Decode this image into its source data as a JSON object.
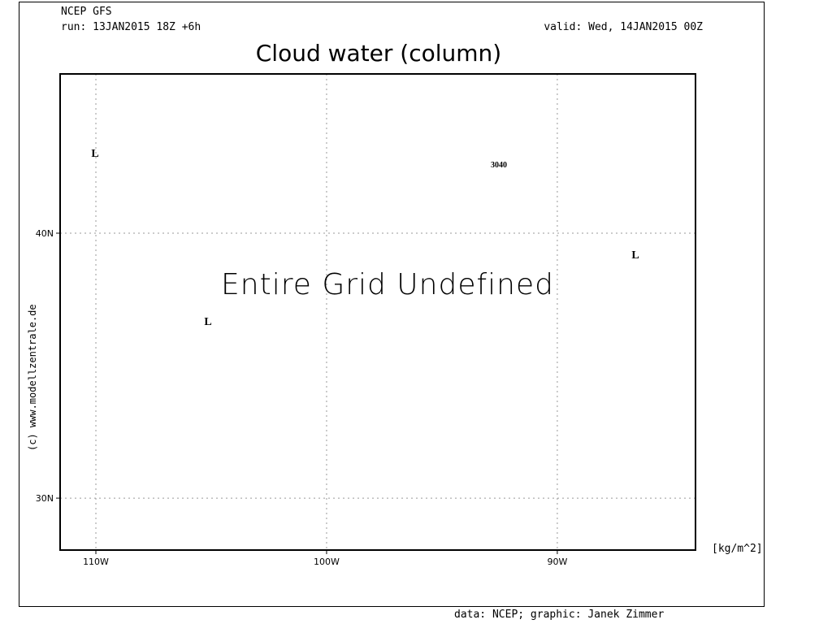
{
  "header": {
    "model": "NCEP GFS",
    "run": "run: 13JAN2015 18Z +6h",
    "valid": "valid: Wed, 14JAN2015 00Z"
  },
  "title": "Cloud water (column)",
  "map": {
    "message": "Entire Grid Undefined",
    "xlim": [
      -111.55,
      -84.01
    ],
    "ylim": [
      28.04,
      46.01
    ],
    "xticks": [
      {
        "value": -110,
        "label": "110W"
      },
      {
        "value": -100,
        "label": "100W"
      },
      {
        "value": -90,
        "label": "90W"
      }
    ],
    "yticks": [
      {
        "value": 30,
        "label": "30N"
      },
      {
        "value": 40,
        "label": "40N"
      }
    ],
    "pressure_labels": [
      "L",
      "L",
      "L"
    ],
    "contour_label": "3040",
    "units": "[kg/m^2]"
  },
  "footer": {
    "credit": "data: NCEP; graphic: Janek Zimmer",
    "copyright": "(c) www.modellzentrale.de"
  }
}
